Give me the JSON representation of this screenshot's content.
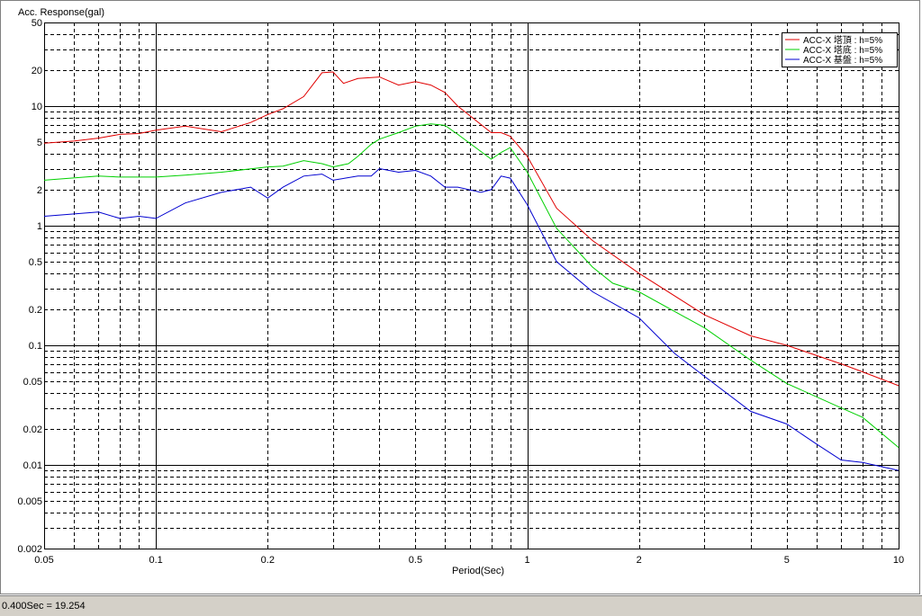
{
  "chart_data": {
    "type": "line",
    "title": "Acc. Response(gal)",
    "xlabel": "Period(Sec)",
    "xlog": true,
    "ylog": true,
    "xlim": [
      0.05,
      10
    ],
    "ylim": [
      0.002,
      50
    ],
    "xticks": [
      0.05,
      0.1,
      0.2,
      0.5,
      1,
      2,
      5,
      10
    ],
    "yticks": [
      50,
      20,
      10,
      5,
      2,
      1,
      0.5,
      0.2,
      0.1,
      0.05,
      0.02,
      0.01,
      0.005,
      0.002
    ],
    "xgrid": [
      0.05,
      0.06,
      0.07,
      0.08,
      0.09,
      0.1,
      0.2,
      0.3,
      0.4,
      0.5,
      0.6,
      0.7,
      0.8,
      0.9,
      1,
      2,
      3,
      4,
      5,
      6,
      7,
      8,
      9,
      10
    ],
    "ygrid": [
      0.002,
      0.003,
      0.004,
      0.005,
      0.006,
      0.007,
      0.008,
      0.009,
      0.01,
      0.02,
      0.03,
      0.04,
      0.05,
      0.06,
      0.07,
      0.08,
      0.09,
      0.1,
      0.2,
      0.3,
      0.4,
      0.5,
      0.6,
      0.7,
      0.8,
      0.9,
      1,
      2,
      3,
      4,
      5,
      6,
      7,
      8,
      9,
      10,
      20,
      30,
      40,
      50
    ],
    "legend": "upper right",
    "series": [
      {
        "name": "ACC-X 塔頂 : h=5%",
        "color": "#e00000",
        "x": [
          0.05,
          0.06,
          0.07,
          0.08,
          0.09,
          0.1,
          0.12,
          0.15,
          0.18,
          0.2,
          0.22,
          0.25,
          0.28,
          0.3,
          0.32,
          0.35,
          0.4,
          0.45,
          0.5,
          0.55,
          0.6,
          0.65,
          0.8,
          0.85,
          0.9,
          1,
          1.2,
          1.5,
          2,
          3,
          4,
          5,
          7,
          8,
          10
        ],
        "values": [
          4.9,
          5.1,
          5.4,
          5.8,
          5.9,
          6.3,
          6.8,
          6.1,
          7.3,
          8.5,
          9.5,
          12,
          19,
          19.3,
          15.5,
          17,
          17.5,
          15,
          16,
          15,
          13,
          10,
          6,
          6,
          5.6,
          3.8,
          1.4,
          0.75,
          0.4,
          0.18,
          0.12,
          0.1,
          0.07,
          0.06,
          0.046
        ]
      },
      {
        "name": "ACC-X 塔底 : h=5%",
        "color": "#00d000",
        "x": [
          0.05,
          0.07,
          0.08,
          0.1,
          0.12,
          0.15,
          0.2,
          0.22,
          0.25,
          0.28,
          0.3,
          0.33,
          0.35,
          0.38,
          0.4,
          0.45,
          0.5,
          0.55,
          0.6,
          0.65,
          0.8,
          0.85,
          0.9,
          1,
          1.2,
          1.5,
          1.7,
          2,
          3,
          4,
          5,
          7,
          8,
          10
        ],
        "values": [
          2.4,
          2.6,
          2.55,
          2.55,
          2.65,
          2.8,
          3.1,
          3.15,
          3.5,
          3.3,
          3.1,
          3.3,
          3.8,
          4.8,
          5.3,
          6,
          6.8,
          7.1,
          6.9,
          5.8,
          3.6,
          4.1,
          4.5,
          2.8,
          0.95,
          0.45,
          0.33,
          0.28,
          0.14,
          0.075,
          0.048,
          0.03,
          0.025,
          0.014
        ]
      },
      {
        "name": "ACC-X 基盤 : h=5%",
        "color": "#0000d0",
        "x": [
          0.05,
          0.07,
          0.08,
          0.09,
          0.1,
          0.12,
          0.15,
          0.18,
          0.2,
          0.22,
          0.25,
          0.28,
          0.3,
          0.35,
          0.38,
          0.4,
          0.45,
          0.5,
          0.55,
          0.6,
          0.65,
          0.75,
          0.8,
          0.85,
          0.9,
          1,
          1.2,
          1.5,
          2,
          2.5,
          3,
          4,
          5,
          6,
          7,
          8,
          10
        ],
        "values": [
          1.2,
          1.3,
          1.15,
          1.2,
          1.15,
          1.55,
          1.9,
          2.1,
          1.7,
          2.1,
          2.6,
          2.7,
          2.4,
          2.6,
          2.6,
          3.0,
          2.8,
          2.9,
          2.6,
          2.1,
          2.1,
          1.9,
          2.0,
          2.6,
          2.5,
          1.5,
          0.5,
          0.28,
          0.17,
          0.085,
          0.055,
          0.028,
          0.022,
          0.015,
          0.011,
          0.0105,
          0.009
        ]
      }
    ]
  },
  "status_bar": "0.400Sec = 19.254"
}
